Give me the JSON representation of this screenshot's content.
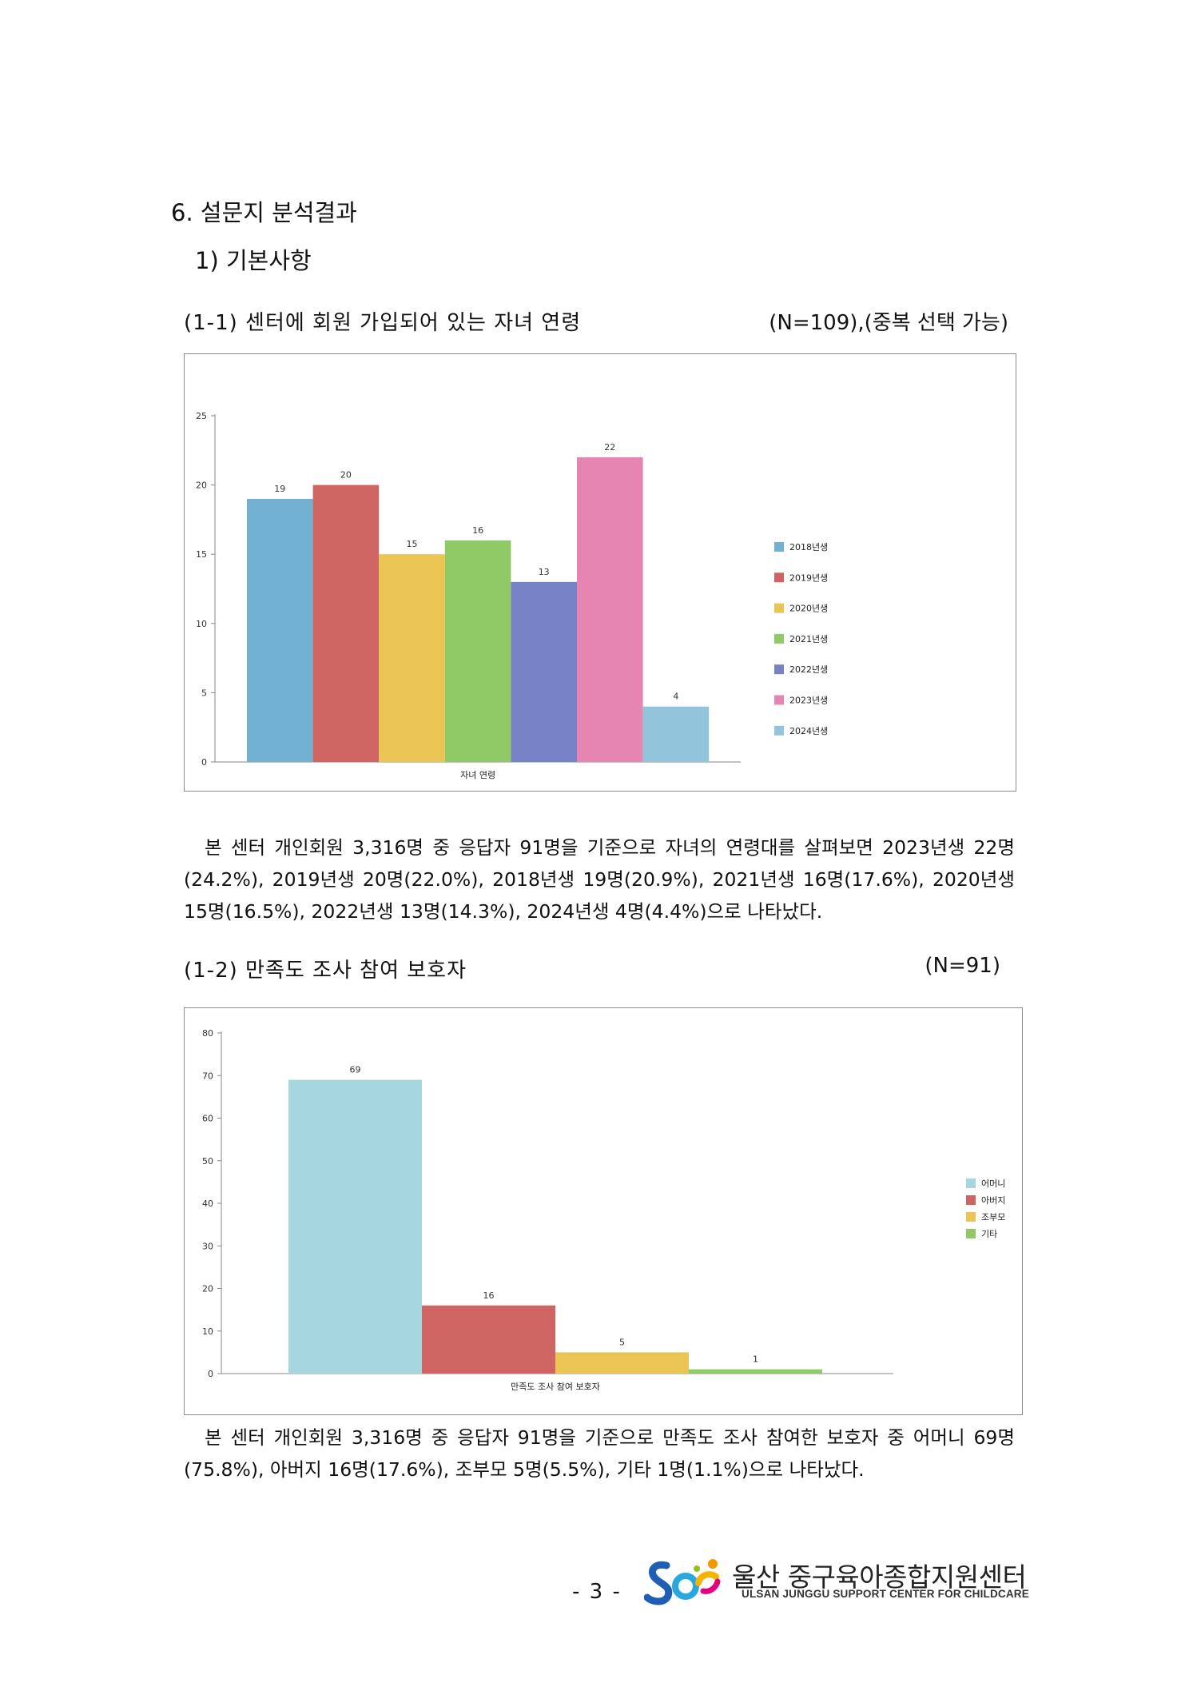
{
  "section_heading": "6. 설문지 분석결과",
  "subsection_heading": "1) 기본사항",
  "chart1": {
    "caption": "(1-1) 센터에 회원 가입되어 있는 자녀 연령",
    "note": "(N=109),(중복 선택 가능)",
    "paragraph": "본 센터 개인회원 3,316명 중 응답자 91명을 기준으로 자녀의 연령대를 살펴보면 2023년생 22명(24.2%), 2019년생 20명(22.0%), 2018년생 19명(20.9%), 2021년생 16명(17.6%), 2020년생 15명(16.5%), 2022년생 13명(14.3%), 2024년생 4명(4.4%)으로 나타났다."
  },
  "chart2": {
    "caption": "(1-2) 만족도 조사 참여 보호자",
    "note": "(N=91)",
    "paragraph": "본 센터 개인회원 3,316명 중 응답자 91명을 기준으로 만족도 조사 참여한 보호자 중 어머니 69명(75.8%), 아버지 16명(17.6%), 조부모 5명(5.5%), 기타 1명(1.1%)으로 나타났다."
  },
  "chart_data": [
    {
      "type": "bar",
      "title": "",
      "xlabel": "자녀 연령",
      "ylabel": "",
      "ylim": [
        0,
        25
      ],
      "yticks": [
        0,
        5,
        10,
        15,
        20,
        25
      ],
      "grid": false,
      "legend_position": "right",
      "series": [
        {
          "name": "2018년생",
          "value": 19,
          "color": "#72B1D1"
        },
        {
          "name": "2019년생",
          "value": 20,
          "color": "#CF6562"
        },
        {
          "name": "2020년생",
          "value": 15,
          "color": "#EBC553"
        },
        {
          "name": "2021년생",
          "value": 16,
          "color": "#8FCA67"
        },
        {
          "name": "2022년생",
          "value": 13,
          "color": "#7782C7"
        },
        {
          "name": "2023년생",
          "value": 22,
          "color": "#E685B2"
        },
        {
          "name": "2024년생",
          "value": 4,
          "color": "#92C4DC"
        }
      ]
    },
    {
      "type": "bar",
      "title": "",
      "xlabel": "만족도 조사 참여 보호자",
      "ylabel": "",
      "ylim": [
        0,
        80
      ],
      "yticks": [
        0,
        10,
        20,
        30,
        40,
        50,
        60,
        70,
        80
      ],
      "grid": false,
      "legend_position": "right",
      "series": [
        {
          "name": "어머니",
          "value": 69,
          "color": "#A7D7DE"
        },
        {
          "name": "아버지",
          "value": 16,
          "color": "#CF6562"
        },
        {
          "name": "조부모",
          "value": 5,
          "color": "#EBC553"
        },
        {
          "name": "기타",
          "value": 1,
          "color": "#8FCA67"
        }
      ]
    }
  ],
  "footer": {
    "page_number": "- 3 -",
    "org_name_kr": "울산 중구육아종합지원센터",
    "org_name_en": "ULSAN JUNGGU SUPPORT CENTER FOR CHILDCARE"
  }
}
